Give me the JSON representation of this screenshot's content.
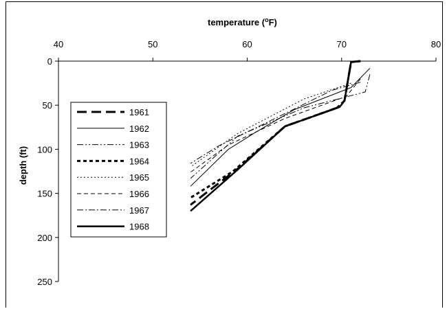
{
  "chart_data": {
    "type": "line",
    "title": "",
    "xlabel": "temperature (°F)",
    "xlabel_parts": {
      "before": "temperature (",
      "superscript": "o",
      "after": "F)"
    },
    "ylabel": "depth (ft)",
    "x_axis_position": "top",
    "y_axis_inverted": true,
    "xlim": [
      40,
      80
    ],
    "ylim": [
      0,
      250
    ],
    "x_ticks": [
      40,
      50,
      60,
      70,
      80
    ],
    "y_ticks": [
      0,
      50,
      100,
      150,
      200,
      250
    ],
    "grid": false,
    "legend_position": "left",
    "series": [
      {
        "name": "1961",
        "style": "long-dash",
        "width": 3,
        "points": [
          [
            72,
            0
          ],
          [
            71,
            1
          ],
          [
            70.3,
            45
          ],
          [
            69.5,
            53
          ],
          [
            64,
            74
          ],
          [
            59,
            122
          ],
          [
            54,
            163
          ]
        ]
      },
      {
        "name": "1962",
        "style": "solid",
        "width": 1,
        "points": [
          [
            73,
            8
          ],
          [
            71,
            30
          ],
          [
            65,
            55
          ],
          [
            61,
            80
          ],
          [
            58,
            100
          ],
          [
            54,
            142
          ]
        ]
      },
      {
        "name": "1963",
        "style": "dash-dot-dot",
        "width": 1,
        "points": [
          [
            73,
            15
          ],
          [
            72.5,
            35
          ],
          [
            66,
            53
          ],
          [
            59,
            85
          ],
          [
            54,
            133
          ]
        ]
      },
      {
        "name": "1964",
        "style": "dotted-thick",
        "width": 3,
        "points": [
          [
            72,
            0
          ],
          [
            71,
            1
          ],
          [
            70.3,
            45
          ],
          [
            69.5,
            53
          ],
          [
            64,
            74
          ],
          [
            58.5,
            125
          ],
          [
            54,
            155
          ]
        ]
      },
      {
        "name": "1965",
        "style": "dotted",
        "width": 1,
        "points": [
          [
            71,
            25
          ],
          [
            66,
            43
          ],
          [
            59,
            82
          ],
          [
            54,
            120
          ]
        ]
      },
      {
        "name": "1966",
        "style": "dashed",
        "width": 1,
        "points": [
          [
            72,
            20
          ],
          [
            70.5,
            40
          ],
          [
            64,
            65
          ],
          [
            58,
            95
          ],
          [
            54,
            126
          ]
        ]
      },
      {
        "name": "1967",
        "style": "dash-dot",
        "width": 1,
        "points": [
          [
            72,
            24
          ],
          [
            69,
            33
          ],
          [
            62,
            70
          ],
          [
            57,
            96
          ],
          [
            54,
            116
          ]
        ]
      },
      {
        "name": "1968",
        "style": "solid-thick",
        "width": 2.5,
        "points": [
          [
            72,
            0
          ],
          [
            71,
            1
          ],
          [
            70.3,
            45
          ],
          [
            69.8,
            52
          ],
          [
            64,
            74
          ],
          [
            59,
            123
          ],
          [
            54,
            170
          ]
        ]
      }
    ]
  }
}
